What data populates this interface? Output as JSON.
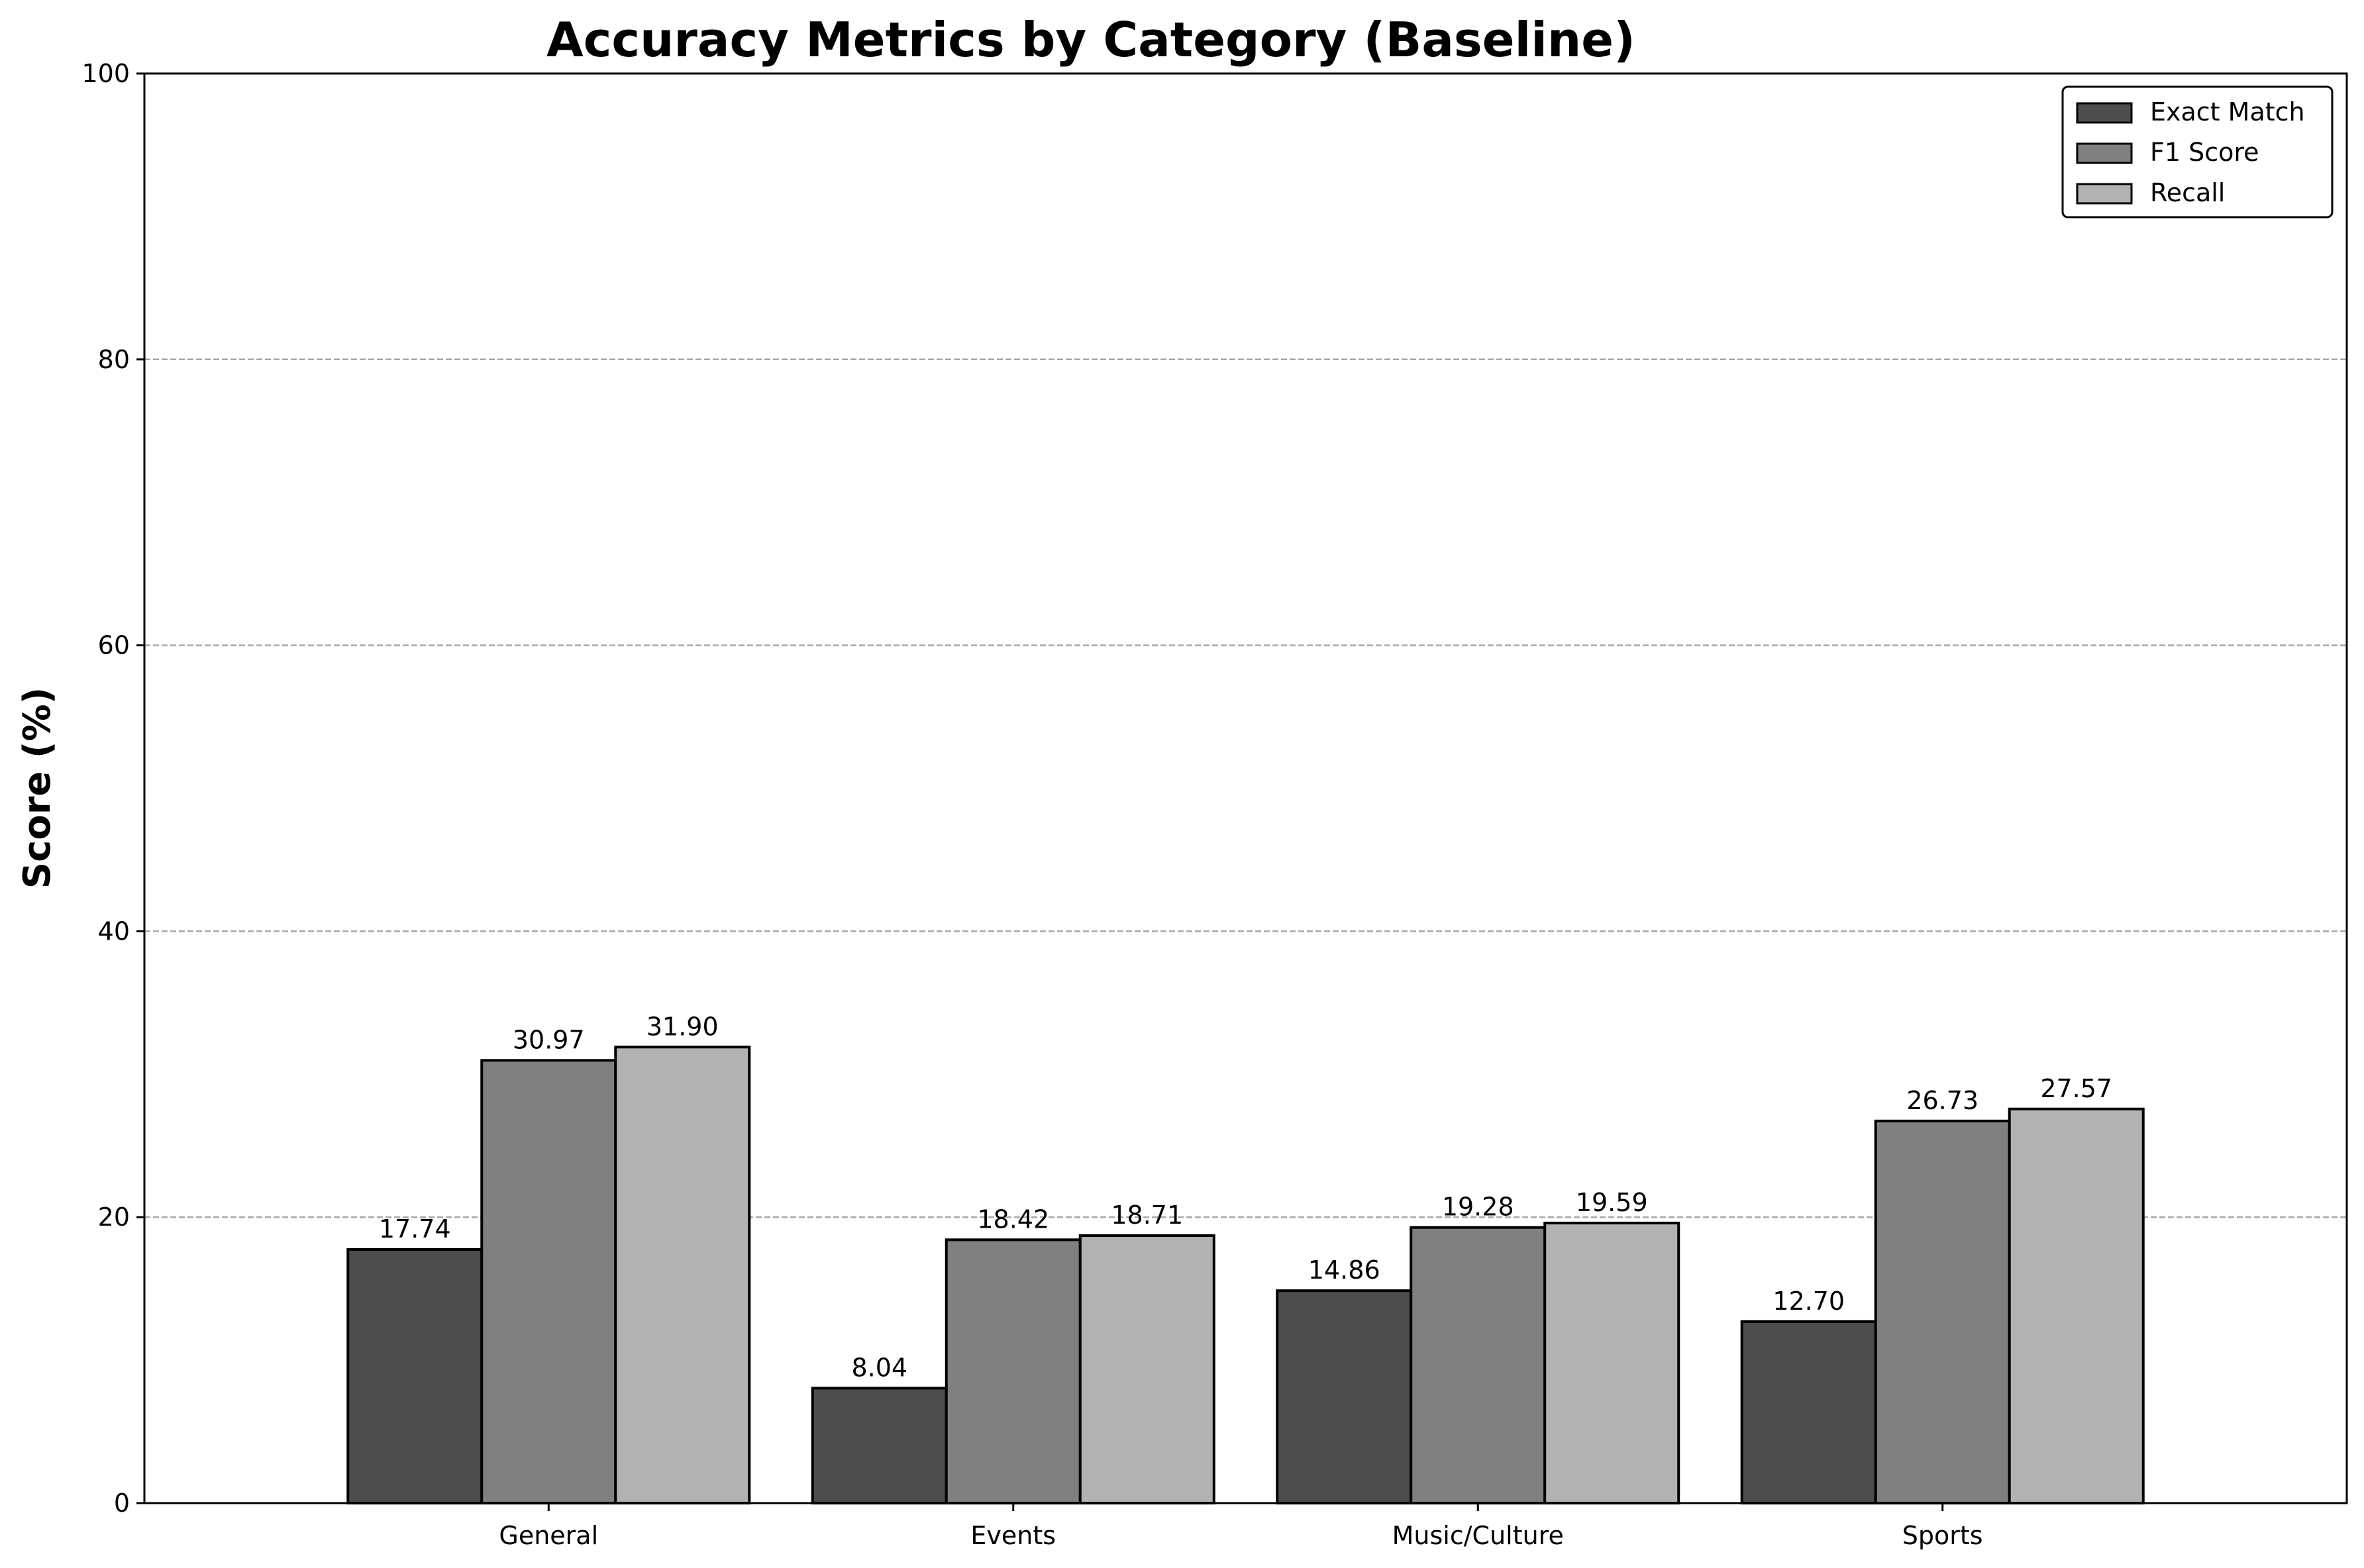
{
  "chart_data": {
    "type": "bar",
    "title": "Accuracy Metrics by Category (Baseline)",
    "xlabel": "",
    "ylabel": "Score (%)",
    "ylim": [
      0,
      100
    ],
    "yticks": [
      0,
      20,
      40,
      60,
      80,
      100
    ],
    "grid": "y-dashed",
    "legend_position": "top-right",
    "categories": [
      "General",
      "Events",
      "Music/Culture",
      "Sports"
    ],
    "series": [
      {
        "name": "Exact Match",
        "color": "#4d4d4d",
        "values": [
          17.74,
          8.04,
          14.86,
          12.7
        ],
        "labels": [
          "17.74",
          "8.04",
          "14.86",
          "12.70"
        ]
      },
      {
        "name": "F1 Score",
        "color": "#808080",
        "values": [
          30.97,
          18.42,
          19.28,
          26.73
        ],
        "labels": [
          "30.97",
          "18.42",
          "19.28",
          "26.73"
        ]
      },
      {
        "name": "Recall",
        "color": "#b2b2b2",
        "values": [
          31.9,
          18.71,
          19.59,
          27.57
        ],
        "labels": [
          "31.90",
          "18.71",
          "19.59",
          "27.57"
        ]
      }
    ]
  }
}
